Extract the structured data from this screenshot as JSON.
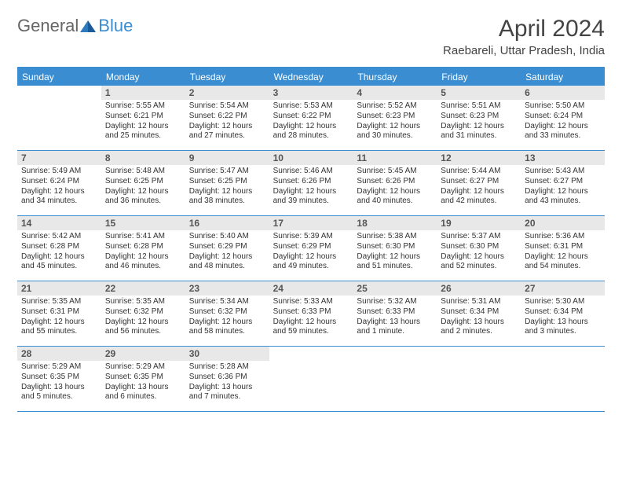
{
  "brand": {
    "part1": "General",
    "part2": "Blue"
  },
  "title": "April 2024",
  "location": "Raebareli, Uttar Pradesh, India",
  "colors": {
    "accent": "#3a8dd0",
    "daynum_bg": "#e8e8e8",
    "text": "#333333",
    "bg": "#ffffff"
  },
  "daynames": [
    "Sunday",
    "Monday",
    "Tuesday",
    "Wednesday",
    "Thursday",
    "Friday",
    "Saturday"
  ],
  "weeks": [
    [
      {
        "n": "",
        "sr": "",
        "ss": "",
        "dl1": "",
        "dl2": ""
      },
      {
        "n": "1",
        "sr": "Sunrise: 5:55 AM",
        "ss": "Sunset: 6:21 PM",
        "dl1": "Daylight: 12 hours",
        "dl2": "and 25 minutes."
      },
      {
        "n": "2",
        "sr": "Sunrise: 5:54 AM",
        "ss": "Sunset: 6:22 PM",
        "dl1": "Daylight: 12 hours",
        "dl2": "and 27 minutes."
      },
      {
        "n": "3",
        "sr": "Sunrise: 5:53 AM",
        "ss": "Sunset: 6:22 PM",
        "dl1": "Daylight: 12 hours",
        "dl2": "and 28 minutes."
      },
      {
        "n": "4",
        "sr": "Sunrise: 5:52 AM",
        "ss": "Sunset: 6:23 PM",
        "dl1": "Daylight: 12 hours",
        "dl2": "and 30 minutes."
      },
      {
        "n": "5",
        "sr": "Sunrise: 5:51 AM",
        "ss": "Sunset: 6:23 PM",
        "dl1": "Daylight: 12 hours",
        "dl2": "and 31 minutes."
      },
      {
        "n": "6",
        "sr": "Sunrise: 5:50 AM",
        "ss": "Sunset: 6:24 PM",
        "dl1": "Daylight: 12 hours",
        "dl2": "and 33 minutes."
      }
    ],
    [
      {
        "n": "7",
        "sr": "Sunrise: 5:49 AM",
        "ss": "Sunset: 6:24 PM",
        "dl1": "Daylight: 12 hours",
        "dl2": "and 34 minutes."
      },
      {
        "n": "8",
        "sr": "Sunrise: 5:48 AM",
        "ss": "Sunset: 6:25 PM",
        "dl1": "Daylight: 12 hours",
        "dl2": "and 36 minutes."
      },
      {
        "n": "9",
        "sr": "Sunrise: 5:47 AM",
        "ss": "Sunset: 6:25 PM",
        "dl1": "Daylight: 12 hours",
        "dl2": "and 38 minutes."
      },
      {
        "n": "10",
        "sr": "Sunrise: 5:46 AM",
        "ss": "Sunset: 6:26 PM",
        "dl1": "Daylight: 12 hours",
        "dl2": "and 39 minutes."
      },
      {
        "n": "11",
        "sr": "Sunrise: 5:45 AM",
        "ss": "Sunset: 6:26 PM",
        "dl1": "Daylight: 12 hours",
        "dl2": "and 40 minutes."
      },
      {
        "n": "12",
        "sr": "Sunrise: 5:44 AM",
        "ss": "Sunset: 6:27 PM",
        "dl1": "Daylight: 12 hours",
        "dl2": "and 42 minutes."
      },
      {
        "n": "13",
        "sr": "Sunrise: 5:43 AM",
        "ss": "Sunset: 6:27 PM",
        "dl1": "Daylight: 12 hours",
        "dl2": "and 43 minutes."
      }
    ],
    [
      {
        "n": "14",
        "sr": "Sunrise: 5:42 AM",
        "ss": "Sunset: 6:28 PM",
        "dl1": "Daylight: 12 hours",
        "dl2": "and 45 minutes."
      },
      {
        "n": "15",
        "sr": "Sunrise: 5:41 AM",
        "ss": "Sunset: 6:28 PM",
        "dl1": "Daylight: 12 hours",
        "dl2": "and 46 minutes."
      },
      {
        "n": "16",
        "sr": "Sunrise: 5:40 AM",
        "ss": "Sunset: 6:29 PM",
        "dl1": "Daylight: 12 hours",
        "dl2": "and 48 minutes."
      },
      {
        "n": "17",
        "sr": "Sunrise: 5:39 AM",
        "ss": "Sunset: 6:29 PM",
        "dl1": "Daylight: 12 hours",
        "dl2": "and 49 minutes."
      },
      {
        "n": "18",
        "sr": "Sunrise: 5:38 AM",
        "ss": "Sunset: 6:30 PM",
        "dl1": "Daylight: 12 hours",
        "dl2": "and 51 minutes."
      },
      {
        "n": "19",
        "sr": "Sunrise: 5:37 AM",
        "ss": "Sunset: 6:30 PM",
        "dl1": "Daylight: 12 hours",
        "dl2": "and 52 minutes."
      },
      {
        "n": "20",
        "sr": "Sunrise: 5:36 AM",
        "ss": "Sunset: 6:31 PM",
        "dl1": "Daylight: 12 hours",
        "dl2": "and 54 minutes."
      }
    ],
    [
      {
        "n": "21",
        "sr": "Sunrise: 5:35 AM",
        "ss": "Sunset: 6:31 PM",
        "dl1": "Daylight: 12 hours",
        "dl2": "and 55 minutes."
      },
      {
        "n": "22",
        "sr": "Sunrise: 5:35 AM",
        "ss": "Sunset: 6:32 PM",
        "dl1": "Daylight: 12 hours",
        "dl2": "and 56 minutes."
      },
      {
        "n": "23",
        "sr": "Sunrise: 5:34 AM",
        "ss": "Sunset: 6:32 PM",
        "dl1": "Daylight: 12 hours",
        "dl2": "and 58 minutes."
      },
      {
        "n": "24",
        "sr": "Sunrise: 5:33 AM",
        "ss": "Sunset: 6:33 PM",
        "dl1": "Daylight: 12 hours",
        "dl2": "and 59 minutes."
      },
      {
        "n": "25",
        "sr": "Sunrise: 5:32 AM",
        "ss": "Sunset: 6:33 PM",
        "dl1": "Daylight: 13 hours",
        "dl2": "and 1 minute."
      },
      {
        "n": "26",
        "sr": "Sunrise: 5:31 AM",
        "ss": "Sunset: 6:34 PM",
        "dl1": "Daylight: 13 hours",
        "dl2": "and 2 minutes."
      },
      {
        "n": "27",
        "sr": "Sunrise: 5:30 AM",
        "ss": "Sunset: 6:34 PM",
        "dl1": "Daylight: 13 hours",
        "dl2": "and 3 minutes."
      }
    ],
    [
      {
        "n": "28",
        "sr": "Sunrise: 5:29 AM",
        "ss": "Sunset: 6:35 PM",
        "dl1": "Daylight: 13 hours",
        "dl2": "and 5 minutes."
      },
      {
        "n": "29",
        "sr": "Sunrise: 5:29 AM",
        "ss": "Sunset: 6:35 PM",
        "dl1": "Daylight: 13 hours",
        "dl2": "and 6 minutes."
      },
      {
        "n": "30",
        "sr": "Sunrise: 5:28 AM",
        "ss": "Sunset: 6:36 PM",
        "dl1": "Daylight: 13 hours",
        "dl2": "and 7 minutes."
      },
      {
        "n": "",
        "sr": "",
        "ss": "",
        "dl1": "",
        "dl2": ""
      },
      {
        "n": "",
        "sr": "",
        "ss": "",
        "dl1": "",
        "dl2": ""
      },
      {
        "n": "",
        "sr": "",
        "ss": "",
        "dl1": "",
        "dl2": ""
      },
      {
        "n": "",
        "sr": "",
        "ss": "",
        "dl1": "",
        "dl2": ""
      }
    ]
  ]
}
